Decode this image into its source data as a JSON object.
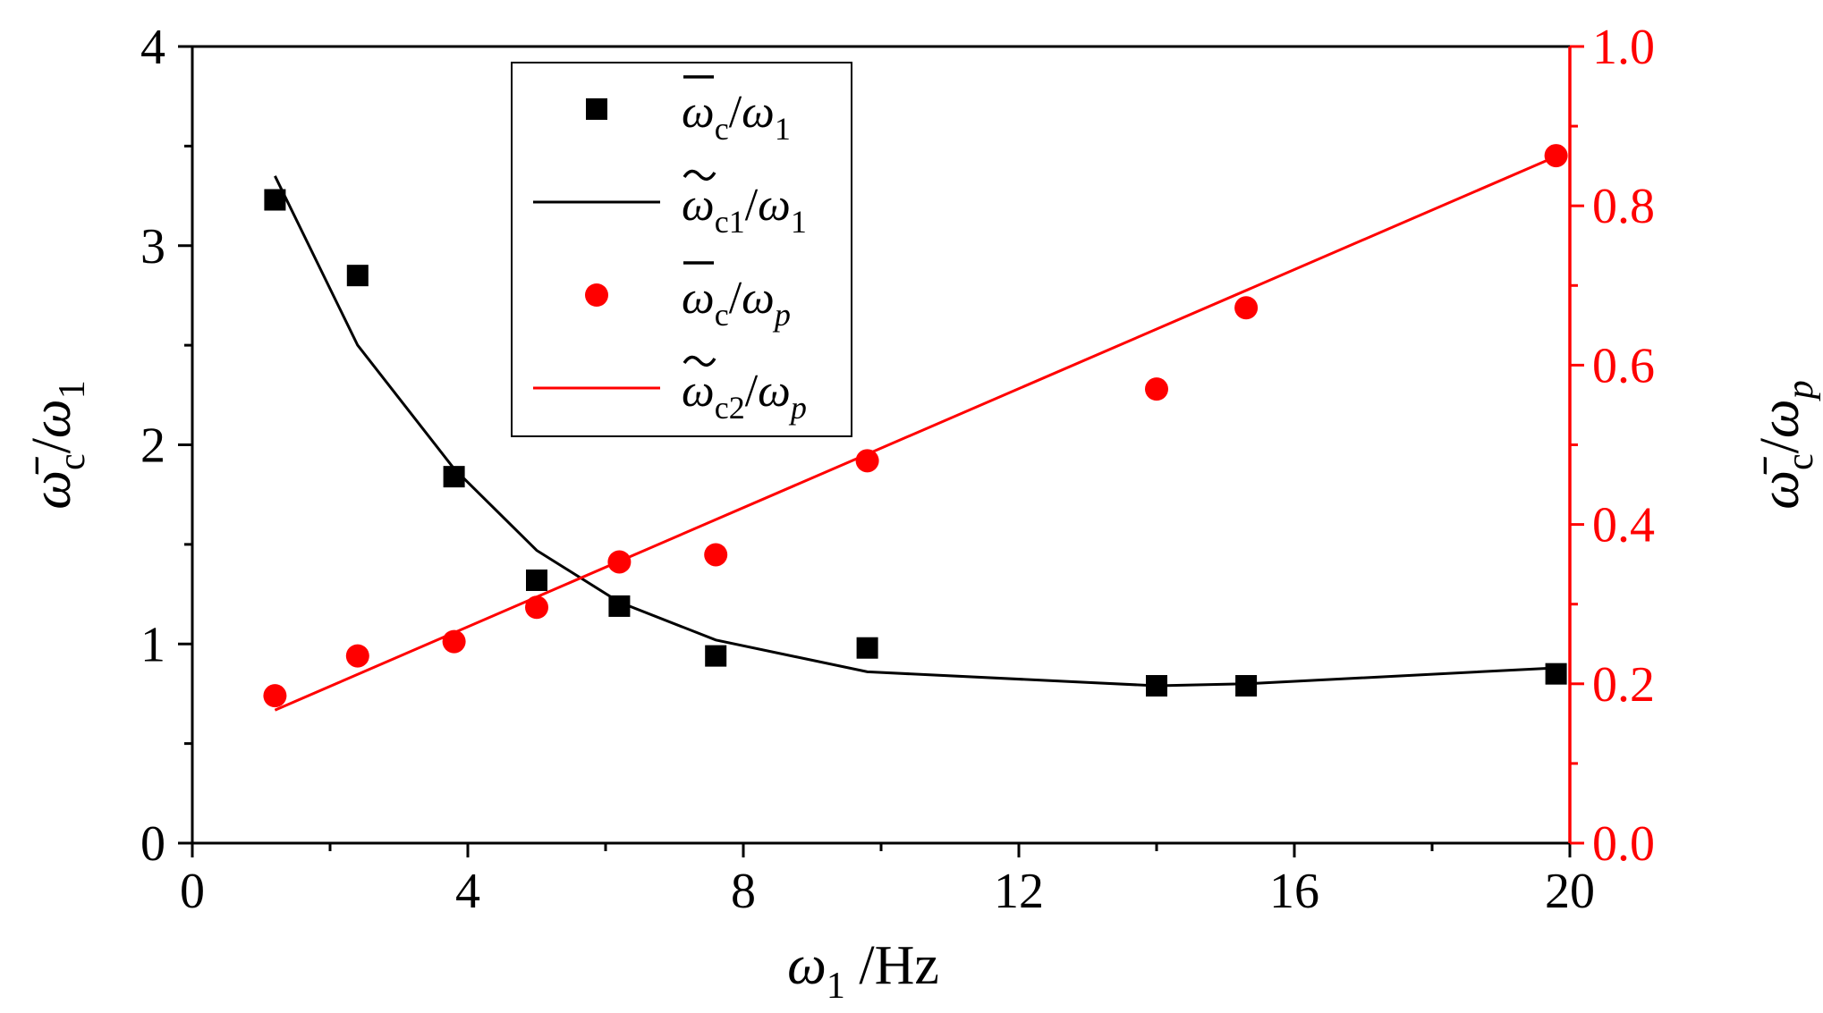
{
  "chart_data": {
    "type": "scatter",
    "x_axis": {
      "label_symbol": "ω",
      "label_sub": "1",
      "label_unit": " /Hz",
      "range": [
        0,
        20
      ],
      "ticks": [
        "0",
        "4",
        "8",
        "12",
        "16",
        "20"
      ],
      "tick_values": [
        0,
        4,
        8,
        12,
        16,
        20
      ],
      "minor_step": 2
    },
    "y_left": {
      "label_symbol": "ω̄",
      "label_sub": "c",
      "label_tail": "/ω",
      "label_tail_sub": "1",
      "range": [
        0,
        4
      ],
      "ticks": [
        "0",
        "1",
        "2",
        "3",
        "4"
      ],
      "tick_values": [
        0,
        1,
        2,
        3,
        4
      ],
      "minor_step": 0.5,
      "color": "#000000"
    },
    "y_right": {
      "label_symbol": "ω̄",
      "label_sub": "c",
      "label_tail": "/ω",
      "label_tail_sub": "p",
      "range": [
        0,
        1
      ],
      "ticks": [
        "0.0",
        "0.2",
        "0.4",
        "0.6",
        "0.8",
        "1.0"
      ],
      "tick_values": [
        0,
        0.2,
        0.4,
        0.6,
        0.8,
        1.0
      ],
      "minor_step": 0.1,
      "color": "#ff0000"
    },
    "series": [
      {
        "name": "ω̄c/ω1",
        "legend_symbol": "ω",
        "legend_sub": "c",
        "legend_tail": "/ω",
        "legend_tail_sub": "1",
        "accent": "bar",
        "kind": "scatter",
        "marker": "square",
        "axis": "left",
        "color": "#000000",
        "x": [
          1.2,
          2.4,
          3.8,
          5.0,
          6.2,
          7.6,
          9.8,
          14.0,
          15.3,
          19.8
        ],
        "y": [
          3.23,
          2.85,
          1.84,
          1.32,
          1.19,
          0.94,
          0.98,
          0.79,
          0.79,
          0.85
        ]
      },
      {
        "name": "ω̃c1/ω1",
        "legend_symbol": "ω",
        "legend_sub": "c1",
        "legend_tail": "/ω",
        "legend_tail_sub": "1",
        "accent": "tilde",
        "kind": "line",
        "axis": "left",
        "color": "#000000",
        "x": [
          1.2,
          2.4,
          3.8,
          5.0,
          6.2,
          7.6,
          9.8,
          14.0,
          15.3,
          19.8
        ],
        "y": [
          3.35,
          2.5,
          1.88,
          1.47,
          1.21,
          1.02,
          0.86,
          0.79,
          0.8,
          0.88
        ]
      },
      {
        "name": "ω̄c/ωp",
        "legend_symbol": "ω",
        "legend_sub": "c",
        "legend_tail": "/ω",
        "legend_tail_sub": "p",
        "accent": "bar",
        "kind": "scatter",
        "marker": "circle",
        "axis": "right",
        "color": "#ff0000",
        "x": [
          1.2,
          2.4,
          3.8,
          5.0,
          6.2,
          7.6,
          9.8,
          14.0,
          15.3,
          19.8
        ],
        "y": [
          0.185,
          0.235,
          0.253,
          0.296,
          0.353,
          0.362,
          0.48,
          0.57,
          0.672,
          0.863
        ]
      },
      {
        "name": "ω̃c2/ωp",
        "legend_symbol": "ω",
        "legend_sub": "c2",
        "legend_tail": "/ω",
        "legend_tail_sub": "p",
        "accent": "tilde",
        "kind": "line",
        "axis": "right",
        "color": "#ff0000",
        "x": [
          1.2,
          19.8
        ],
        "y": [
          0.167,
          0.862
        ]
      }
    ],
    "legend_position": "top-left (inside plot)"
  }
}
